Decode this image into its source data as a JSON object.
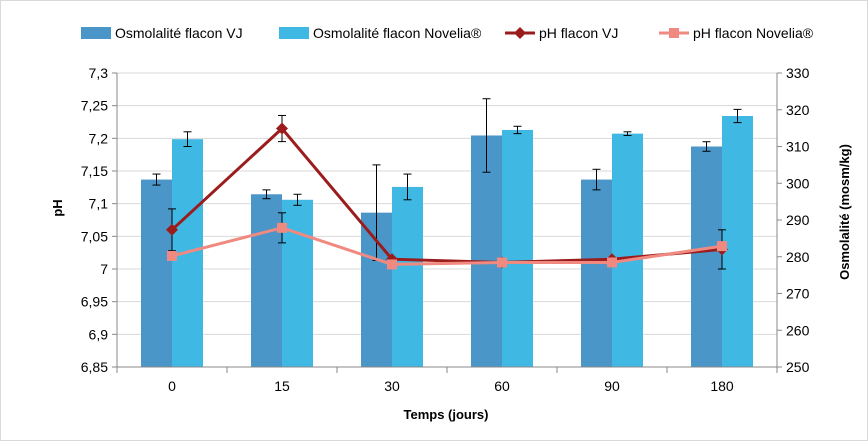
{
  "chart_data": {
    "type": "bar",
    "xlabel": "Temps (jours)",
    "ylabel": "pH",
    "y2label": "Osmolalité (mosm/kg)",
    "categories": [
      "0",
      "15",
      "30",
      "60",
      "90",
      "180"
    ],
    "ylim": [
      6.85,
      7.3
    ],
    "y2lim": [
      250,
      330
    ],
    "y_ticks": [
      "6,85",
      "6,9",
      "6,95",
      "7",
      "7,05",
      "7,1",
      "7,15",
      "7,2",
      "7,25",
      "7,3"
    ],
    "y2_ticks": [
      "250",
      "260",
      "270",
      "280",
      "290",
      "300",
      "310",
      "320",
      "330"
    ],
    "grid": true,
    "legend_position": "top",
    "series": [
      {
        "name": "Osmolalité flacon VJ",
        "kind": "bar",
        "axis": "right",
        "color": "#4a96c9",
        "values": [
          301,
          297,
          292,
          313,
          301,
          310
        ],
        "errors": [
          1.5,
          1.2,
          13,
          10,
          2.8,
          1.3
        ]
      },
      {
        "name": "Osmolalité flacon Novelia®",
        "kind": "bar",
        "axis": "right",
        "color": "#3fb8e3",
        "values": [
          312,
          295.5,
          299,
          314.5,
          313.5,
          318.3
        ],
        "errors": [
          2,
          1.5,
          3.5,
          1,
          0.5,
          1.8
        ]
      },
      {
        "name": "pH flacon VJ",
        "kind": "line",
        "axis": "left",
        "color": "#9b1c1c",
        "marker": "diamond",
        "values": [
          7.06,
          7.215,
          7.015,
          7.01,
          7.015,
          7.03
        ],
        "errors": [
          0.032,
          0.02,
          0,
          0,
          0,
          0.03
        ]
      },
      {
        "name": "pH flacon Novelia®",
        "kind": "line",
        "axis": "left",
        "color": "#f08a80",
        "marker": "square",
        "values": [
          7.02,
          7.063,
          7.007,
          7.01,
          7.01,
          7.035
        ],
        "errors": [
          0,
          0.023,
          0,
          0,
          0,
          0
        ]
      }
    ]
  }
}
